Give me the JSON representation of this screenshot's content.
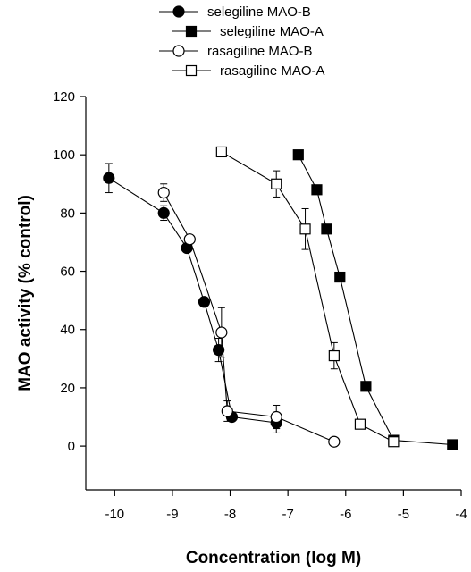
{
  "chart_data": {
    "type": "line",
    "title": "",
    "xlabel": "Concentration (log M)",
    "ylabel": "MAO activity (% control)",
    "xlim": [
      -10.5,
      -4
    ],
    "ylim": [
      -15,
      120
    ],
    "xticks": [
      -10,
      -9,
      -8,
      -7,
      -6,
      -5,
      -4
    ],
    "yticks": [
      0,
      20,
      40,
      60,
      80,
      100,
      120
    ],
    "legend_position": "top-center",
    "series": [
      {
        "name": "selegiline MAO-B",
        "marker": "circle-filled",
        "x": [
          -10.1,
          -9.15,
          -8.75,
          -8.45,
          -8.2,
          -7.97,
          -7.2
        ],
        "y": [
          92,
          80,
          68,
          49.5,
          33,
          10,
          8
        ],
        "err": [
          5,
          2.5,
          0,
          0,
          4,
          0,
          3.5
        ]
      },
      {
        "name": "selegiline MAO-A",
        "marker": "square-filled",
        "x": [
          -6.82,
          -6.5,
          -6.33,
          -6.1,
          -5.65,
          -5.17,
          -4.15
        ],
        "y": [
          100,
          88,
          74.5,
          58,
          20.5,
          2,
          0.5
        ],
        "err": [
          0,
          0,
          0,
          0,
          0,
          0,
          0
        ]
      },
      {
        "name": "rasagiline MAO-B",
        "marker": "circle-open",
        "x": [
          -9.15,
          -8.7,
          -8.15,
          -8.05,
          -7.2,
          -6.2
        ],
        "y": [
          87,
          71,
          39,
          12,
          10,
          1.5
        ],
        "err": [
          3,
          0,
          8.5,
          3.5,
          4,
          0
        ]
      },
      {
        "name": "rasagiline MAO-A",
        "marker": "square-open",
        "x": [
          -8.15,
          -7.2,
          -6.7,
          -6.2,
          -5.75,
          -5.17
        ],
        "y": [
          101,
          90,
          74.5,
          31,
          7.5,
          1.5
        ],
        "err": [
          0,
          4.5,
          7,
          4.5,
          0,
          0
        ]
      }
    ]
  }
}
